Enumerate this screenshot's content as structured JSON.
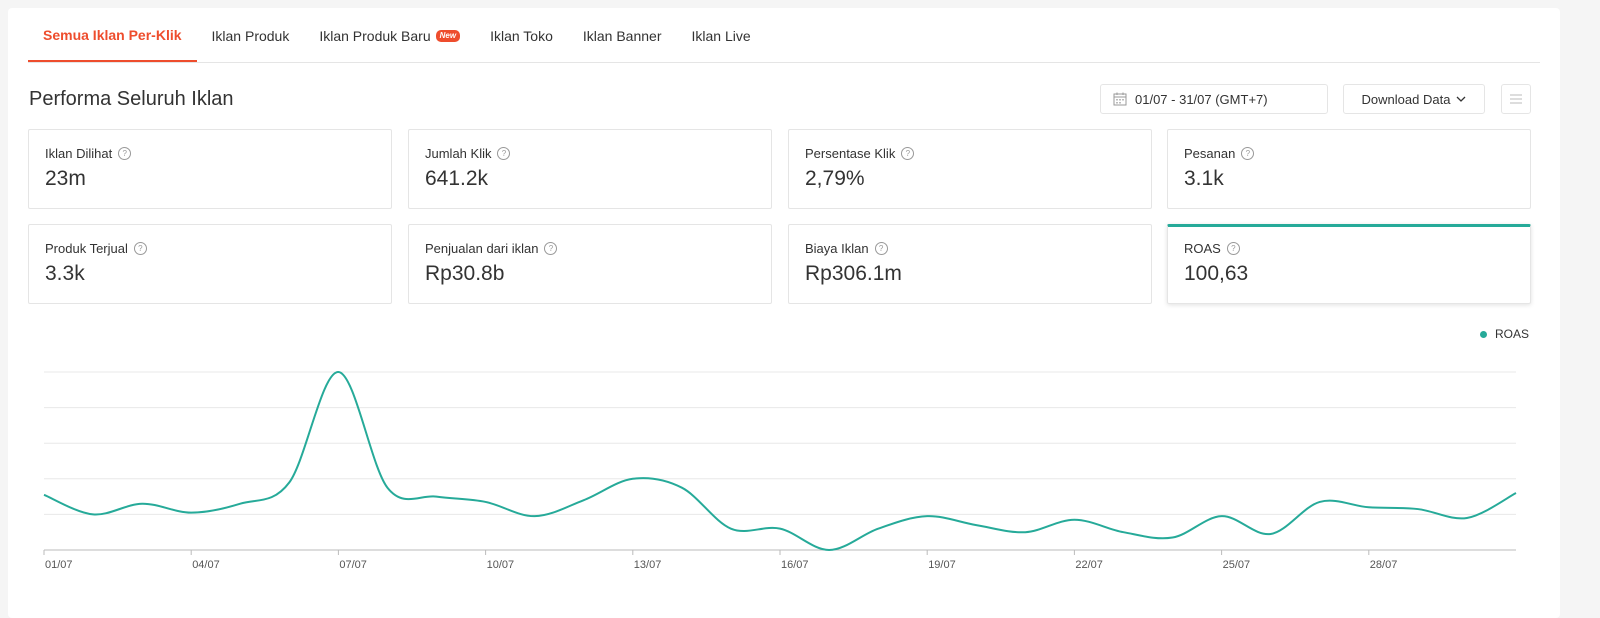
{
  "tabs": [
    {
      "label": "Semua Iklan Per-Klik",
      "active": true
    },
    {
      "label": "Iklan Produk"
    },
    {
      "label": "Iklan Produk Baru",
      "badge": "New"
    },
    {
      "label": "Iklan Toko"
    },
    {
      "label": "Iklan Banner"
    },
    {
      "label": "Iklan Live"
    }
  ],
  "header": {
    "title": "Performa Seluruh Iklan",
    "date_range": "01/07 - 31/07 (GMT+7)",
    "download_label": "Download Data"
  },
  "metrics": [
    {
      "label": "Iklan Dilihat",
      "value": "23m"
    },
    {
      "label": "Jumlah Klik",
      "value": "641.2k"
    },
    {
      "label": "Persentase Klik",
      "value": "2,79%"
    },
    {
      "label": "Pesanan",
      "value": "3.1k"
    },
    {
      "label": "Produk Terjual",
      "value": "3.3k"
    },
    {
      "label": "Penjualan dari iklan",
      "value": "Rp30.8b"
    },
    {
      "label": "Biaya Iklan",
      "value": "Rp306.1m"
    },
    {
      "label": "ROAS",
      "value": "100,63",
      "selected": true
    }
  ],
  "colors": {
    "accent": "#ee4d2d",
    "series": "#26aa99"
  },
  "chart_data": {
    "type": "line",
    "legend_position": "top-right",
    "grid": true,
    "x_tick_labels": [
      "01/07",
      "04/07",
      "07/07",
      "10/07",
      "13/07",
      "16/07",
      "19/07",
      "22/07",
      "25/07",
      "28/07"
    ],
    "x": [
      "01/07",
      "02/07",
      "03/07",
      "04/07",
      "05/07",
      "06/07",
      "07/07",
      "08/07",
      "09/07",
      "10/07",
      "11/07",
      "12/07",
      "13/07",
      "14/07",
      "15/07",
      "16/07",
      "17/07",
      "18/07",
      "19/07",
      "20/07",
      "21/07",
      "22/07",
      "23/07",
      "24/07",
      "25/07",
      "26/07",
      "27/07",
      "28/07",
      "29/07",
      "30/07",
      "31/07"
    ],
    "ylim": [
      0,
      100
    ],
    "series": [
      {
        "name": "ROAS",
        "values": [
          31,
          20,
          26,
          21,
          26,
          38,
          100,
          35,
          30,
          27,
          19,
          28,
          40,
          35,
          12,
          12,
          0,
          12,
          19,
          14,
          10,
          17,
          10,
          7,
          19,
          9,
          27,
          24,
          23,
          18,
          32
        ]
      }
    ]
  }
}
